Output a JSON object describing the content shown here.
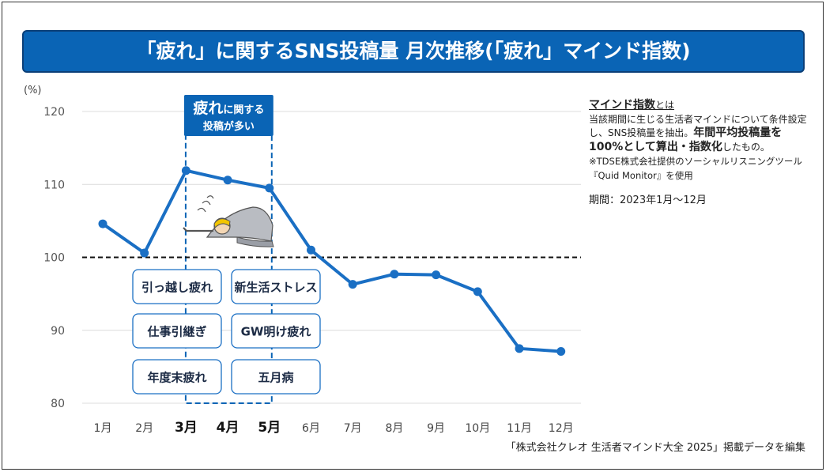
{
  "header": {
    "title": "「疲れ」に関するSNS投稿量 月次推移(「疲れ」マインド指数)"
  },
  "chart_data": {
    "type": "line",
    "title": "「疲れ」に関するSNS投稿量 月次推移(「疲れ」マインド指数)",
    "ylabel": "(%)",
    "ylim": [
      80,
      120
    ],
    "yticks": [
      "120",
      "110",
      "100",
      "90",
      "80"
    ],
    "yticks_values": [
      120,
      110,
      100,
      90,
      80
    ],
    "categories": [
      "1月",
      "2月",
      "3月",
      "4月",
      "5月",
      "6月",
      "7月",
      "8月",
      "9月",
      "10月",
      "11月",
      "12月"
    ],
    "bold_categories": [
      "3月",
      "4月",
      "5月"
    ],
    "series": [
      {
        "values": [
          104.6,
          100.6,
          111.9,
          110.6,
          109.5,
          101.0,
          96.3,
          97.7,
          97.6,
          95.3,
          87.5,
          87.1
        ],
        "color": "#1a6fc4"
      }
    ],
    "reference_line": {
      "value": 100,
      "style": "dashed",
      "color": "#111111"
    },
    "highlight": {
      "label_line1_big": "疲れ",
      "label_line1_small": "に関する",
      "label_line2": "投稿が多い",
      "from": "3月",
      "to": "5月",
      "color": "#0a64b5"
    },
    "annotations": {
      "left_column": [
        "引っ越し疲れ",
        "仕事引継ぎ",
        "年度末疲れ"
      ],
      "right_column": [
        "新生活ストレス",
        "GW明け疲れ",
        "五月病"
      ]
    }
  },
  "sidebar": {
    "def_title": "マインド指数",
    "def_title_suffix": "とは",
    "desc1": "当該期間に生じる生活者マインドについて条件設定し、SNS投稿量を抽出。",
    "desc_bold": "年間平均投稿量を100%として算出・指数化",
    "desc2": "したもの。",
    "note": "※TDSE株式会社提供のソーシャルリスニングツール『Quid Monitor』を使用",
    "period": "期間：2023年1月～12月"
  },
  "source": "「株式会社クレオ 生活者マインド大全 2025」掲載データを編集",
  "colors": {
    "accent": "#0a64b5",
    "line": "#1a6fc4",
    "box_border": "#1a6fc4",
    "text_dark": "#1b2a44"
  },
  "icons": [
    "tired-person-crawling-icon"
  ]
}
